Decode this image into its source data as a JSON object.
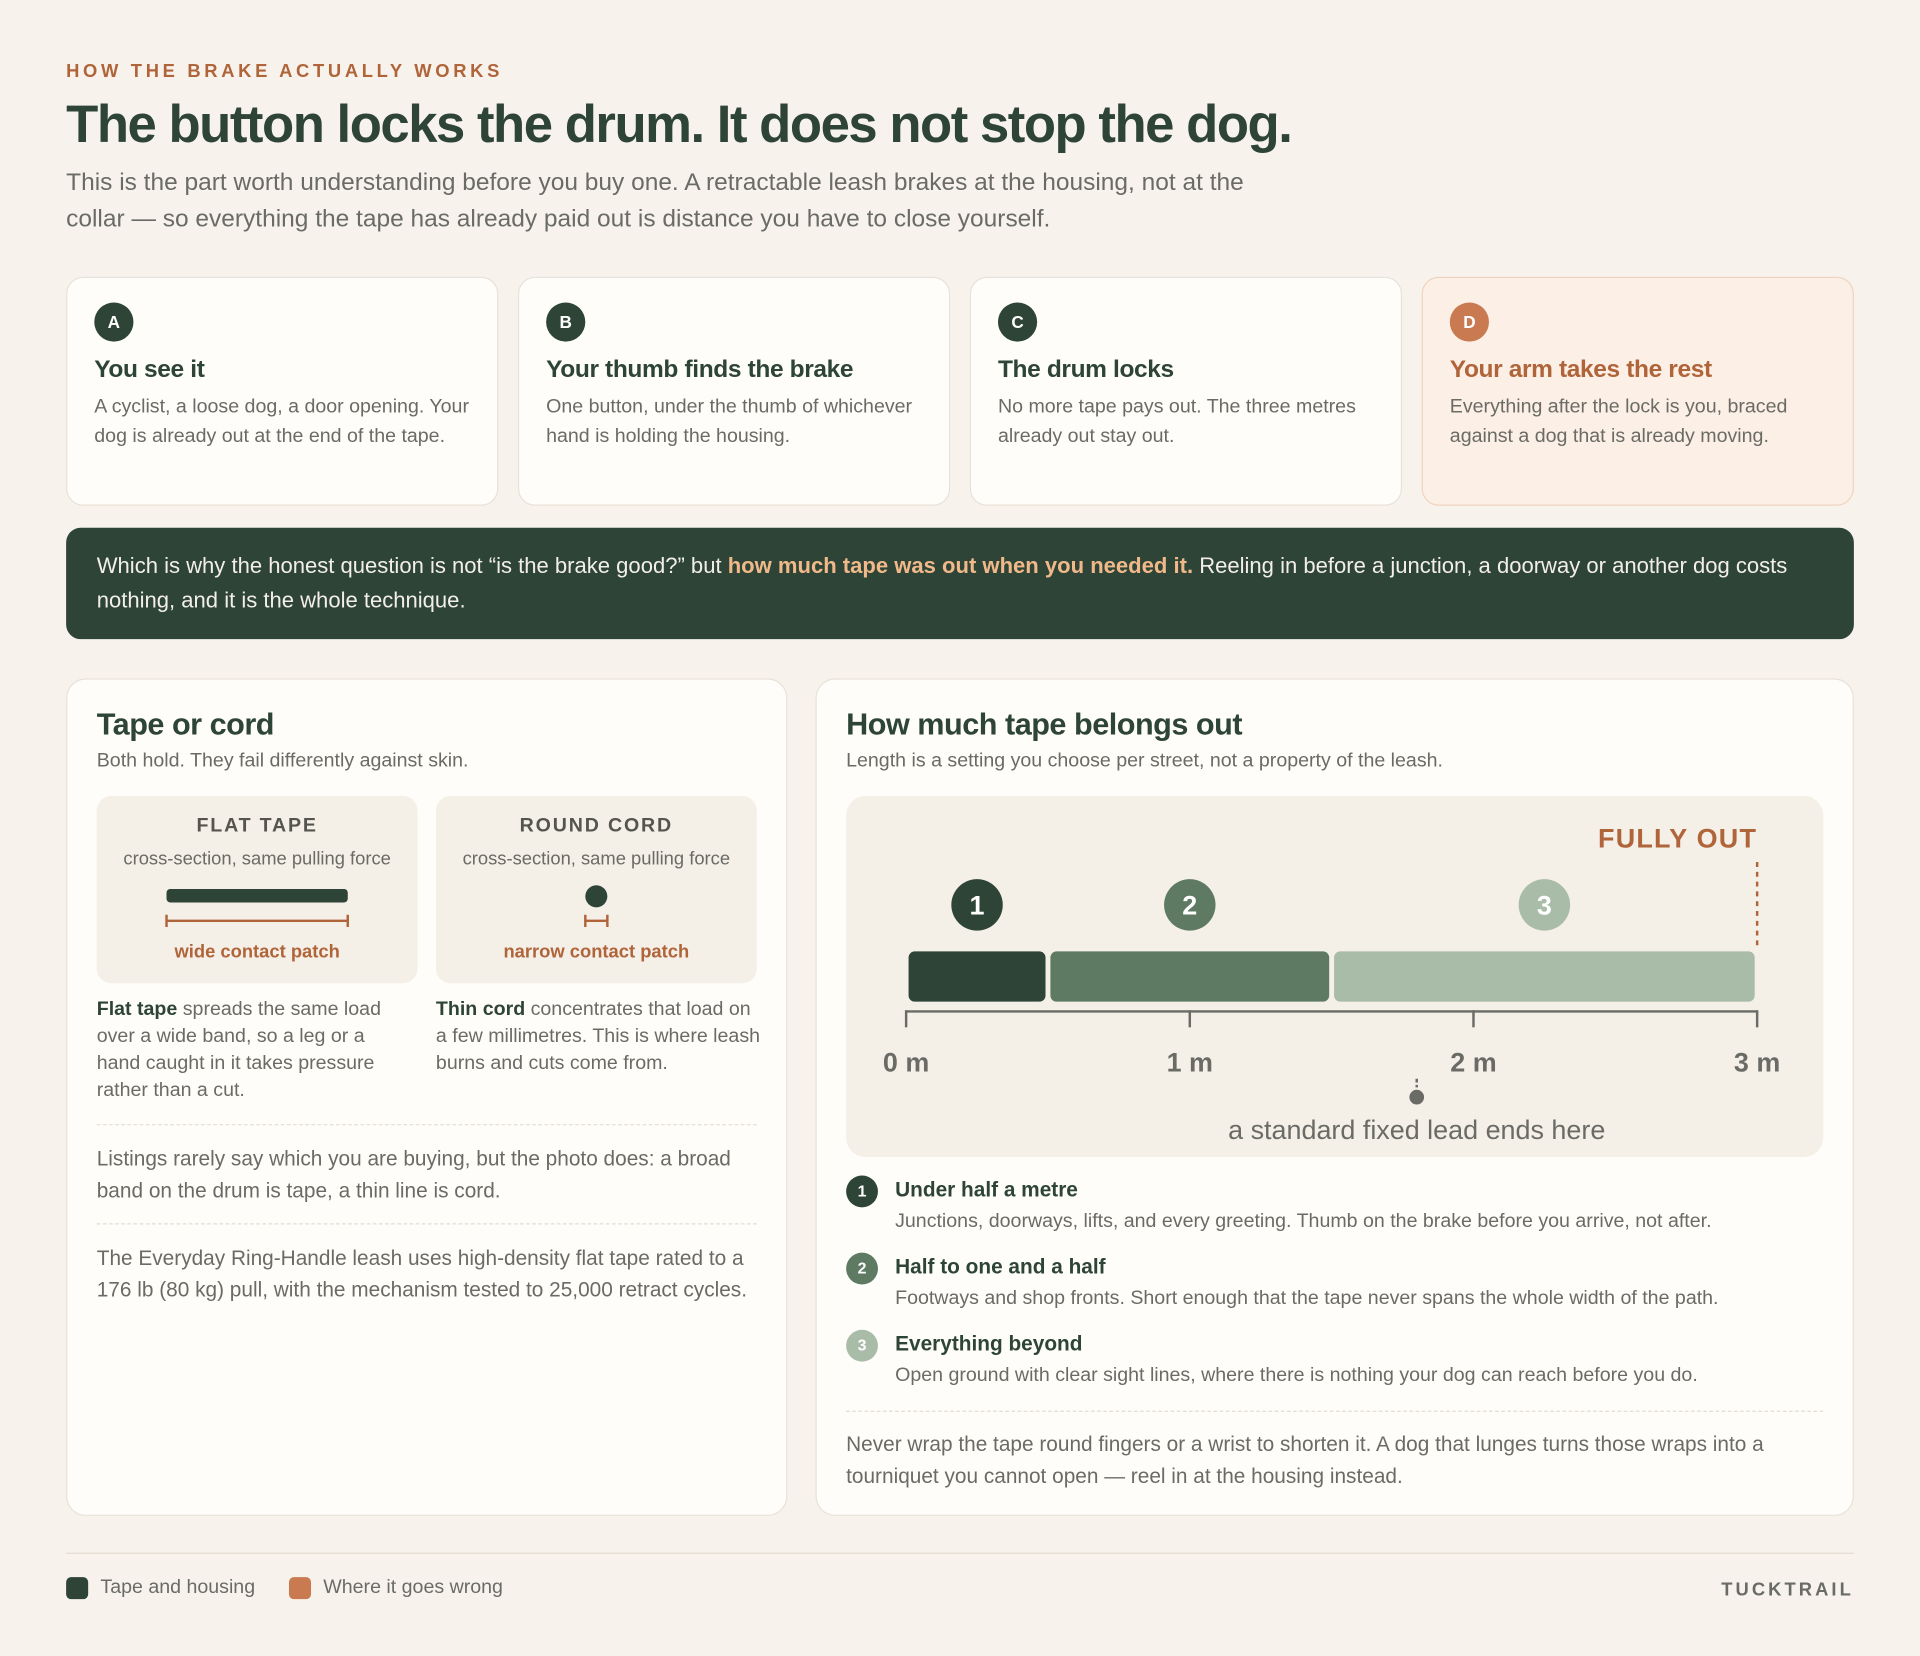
{
  "header": {
    "eyebrow": "HOW THE BRAKE ACTUALLY WORKS",
    "title": "The button locks the drum. It does not stop the dog.",
    "intro": "This is the part worth understanding before you buy one. A retractable leash brakes at the housing, not at the collar — so everything the tape has already paid out is distance you have to close yourself."
  },
  "steps": [
    {
      "letter": "A",
      "title": "You see it",
      "text": "A cyclist, a loose dog, a door opening. Your dog is already out at the end of the tape."
    },
    {
      "letter": "B",
      "title": "Your thumb finds the brake",
      "text": "One button, under the thumb of whichever hand is holding the housing."
    },
    {
      "letter": "C",
      "title": "The drum locks",
      "text": "No more tape pays out. The three metres already out stay out."
    },
    {
      "letter": "D",
      "title": "Your arm takes the rest",
      "text": "Everything after the lock is you, braced against a dog that is already moving."
    }
  ],
  "callout": {
    "before": "Which is why the honest question is not “is the brake good?” but ",
    "highlight": "how much tape was out when you needed it.",
    "after": " Reeling in before a junction, a doorway or another dog costs nothing, and it is the whole technique."
  },
  "left_panel": {
    "title": "Tape or cord",
    "subtitle": "Both hold. They fail differently against skin.",
    "boxes": [
      {
        "title": "FLAT TAPE",
        "caption": "cross-section, same pulling force",
        "label": "wide contact patch"
      },
      {
        "title": "ROUND CORD",
        "caption": "cross-section, same pulling force",
        "label": "narrow contact patch"
      }
    ],
    "descriptions": [
      {
        "bold": "Flat tape",
        "text": " spreads the same load over a wide band, so a leg or a hand caught in it takes pressure rather than a cut."
      },
      {
        "bold": "Thin cord",
        "text": " concentrates that load on a few millimetres. This is where leash burns and cuts come from."
      }
    ],
    "notes": [
      "Listings rarely say which you are buying, but the photo does: a broad band on the drum is tape, a thin line is cord.",
      "The Everyday Ring-Handle leash uses high-density flat tape rated to a 176 lb (80 kg) pull, with the mechanism tested to 25,000 retract cycles."
    ]
  },
  "right_panel": {
    "title": "How much tape belongs out",
    "subtitle": "Length is a setting you choose per street, not a property of the leash.",
    "diagram": {
      "xlim": [
        0,
        3
      ],
      "xticks": [
        {
          "value": 0,
          "label": "0 m"
        },
        {
          "value": 1,
          "label": "1 m"
        },
        {
          "value": 2,
          "label": "2 m"
        },
        {
          "value": 3,
          "label": "3 m"
        }
      ],
      "fully_out_label": "FULLY OUT",
      "segments": [
        {
          "marker": "1",
          "from": 0,
          "to": 0.5,
          "color": "#2d4436"
        },
        {
          "marker": "2",
          "from": 0.5,
          "to": 1.5,
          "color": "#5e7a63"
        },
        {
          "marker": "3",
          "from": 1.5,
          "to": 3,
          "color": "#a8bca8"
        }
      ],
      "fixed_lead": {
        "value": 1.8,
        "label": "a standard fixed lead ends here"
      }
    },
    "zones": [
      {
        "number": "1",
        "title": "Under half a metre",
        "text": "Junctions, doorways, lifts, and every greeting. Thumb on the brake before you arrive, not after."
      },
      {
        "number": "2",
        "title": "Half to one and a half",
        "text": "Footways and shop fronts. Short enough that the tape never spans the whole width of the path."
      },
      {
        "number": "3",
        "title": "Everything beyond",
        "text": "Open ground with clear sight lines, where there is nothing your dog can reach before you do."
      }
    ],
    "warning": "Never wrap the tape round fingers or a wrist to shorten it. A dog that lunges turns those wraps into a tourniquet you cannot open — reel in at the housing instead."
  },
  "footer": {
    "legend": [
      {
        "label": "Tape and housing",
        "color": "#2d4436"
      },
      {
        "label": "Where it goes wrong",
        "color": "#c97a50"
      }
    ],
    "brand": "TUCKTRAIL"
  }
}
